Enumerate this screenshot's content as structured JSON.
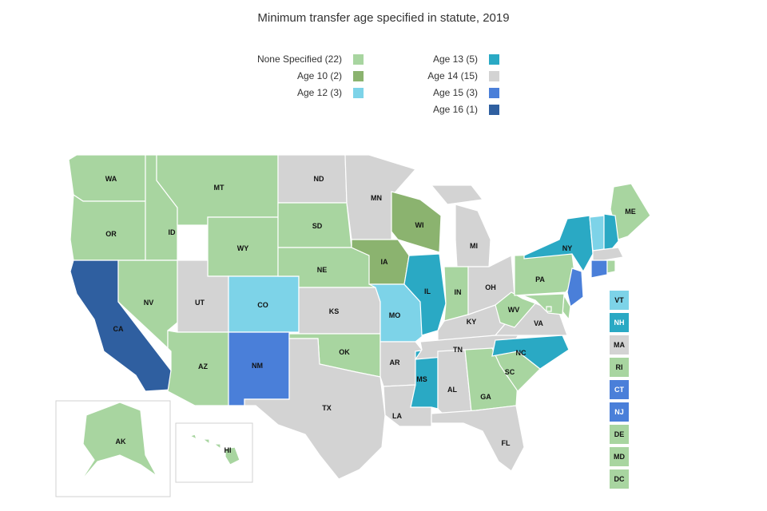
{
  "title": "Minimum transfer age specified in statute, 2019",
  "colors": {
    "none": "#a8d5a0",
    "age10": "#8bb36f",
    "age12": "#7dd3e8",
    "age13": "#2aa9c4",
    "age14": "#d3d3d3",
    "age15": "#4a7fd9",
    "age16": "#2f5fa0"
  },
  "legend": [
    {
      "label": "None Specified (22)",
      "color_key": "none"
    },
    {
      "label": "Age 10 (2)",
      "color_key": "age10"
    },
    {
      "label": "Age 12 (3)",
      "color_key": "age12"
    },
    {
      "label": "Age 13 (5)",
      "color_key": "age13"
    },
    {
      "label": "Age 14 (15)",
      "color_key": "age14"
    },
    {
      "label": "Age 15 (3)",
      "color_key": "age15"
    },
    {
      "label": "Age 16 (1)",
      "color_key": "age16"
    }
  ],
  "states": {
    "WA": "none",
    "OR": "none",
    "CA": "age16",
    "ID": "none",
    "NV": "none",
    "MT": "none",
    "WY": "none",
    "UT": "age14",
    "AZ": "none",
    "CO": "age12",
    "NM": "age15",
    "ND": "age14",
    "SD": "none",
    "NE": "none",
    "KS": "age14",
    "OK": "none",
    "TX": "age14",
    "MN": "age14",
    "IA": "age10",
    "MO": "age12",
    "AR": "age14",
    "LA": "age14",
    "WI": "age10",
    "IL": "age13",
    "MS": "age13",
    "MI": "age14",
    "IN": "none",
    "KY": "age14",
    "TN": "age14",
    "AL": "age14",
    "OH": "age14",
    "GA": "none",
    "FL": "age14",
    "SC": "none",
    "NC": "age13",
    "VA": "age14",
    "WV": "none",
    "PA": "none",
    "NY": "age13",
    "ME": "none",
    "NJ": "age15",
    "CT": "age15",
    "VT": "age12",
    "NH": "age13",
    "MA": "age14",
    "RI": "none",
    "DE": "none",
    "MD": "none",
    "DC": "none",
    "AK": "none",
    "HI": "none"
  },
  "ne_boxes": [
    "VT",
    "NH",
    "MA",
    "RI",
    "CT",
    "NJ",
    "DE",
    "MD",
    "DC"
  ]
}
